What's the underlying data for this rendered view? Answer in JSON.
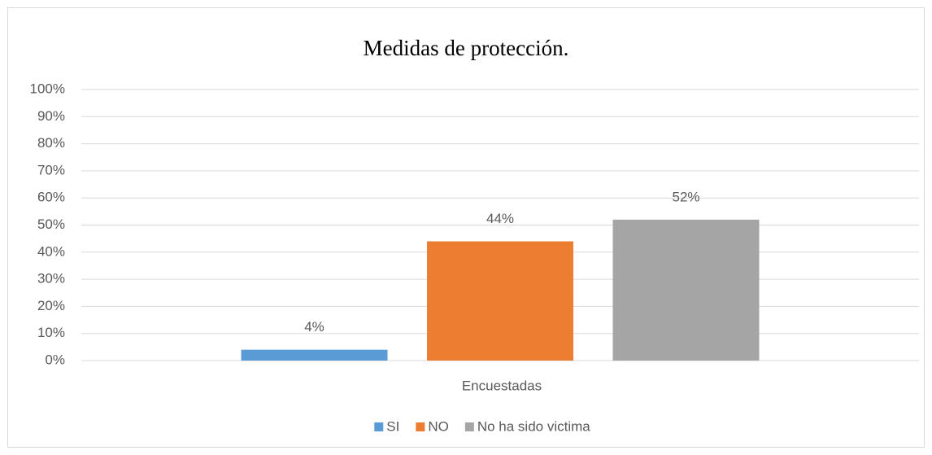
{
  "chart_data": {
    "type": "bar",
    "title": "Medidas de protección.",
    "categories": [
      "Encuestadas"
    ],
    "series": [
      {
        "name": "SI",
        "color": "#5b9bd5",
        "values": [
          4
        ],
        "value_labels": [
          "4%"
        ]
      },
      {
        "name": "NO",
        "color": "#ed7d31",
        "values": [
          44
        ],
        "value_labels": [
          "44%"
        ]
      },
      {
        "name": "No ha sido victima",
        "color": "#a5a5a5",
        "values": [
          52
        ],
        "value_labels": [
          "52%"
        ]
      }
    ],
    "ylim": [
      0,
      100
    ],
    "yticks": [
      {
        "value": 0,
        "label": "0%"
      },
      {
        "value": 10,
        "label": "10%"
      },
      {
        "value": 20,
        "label": "20%"
      },
      {
        "value": 30,
        "label": "30%"
      },
      {
        "value": 40,
        "label": "40%"
      },
      {
        "value": 50,
        "label": "50%"
      },
      {
        "value": 60,
        "label": "60%"
      },
      {
        "value": 70,
        "label": "70%"
      },
      {
        "value": 80,
        "label": "80%"
      },
      {
        "value": 90,
        "label": "90%"
      },
      {
        "value": 100,
        "label": "100%"
      }
    ],
    "grid": true,
    "legend": "bottom"
  }
}
